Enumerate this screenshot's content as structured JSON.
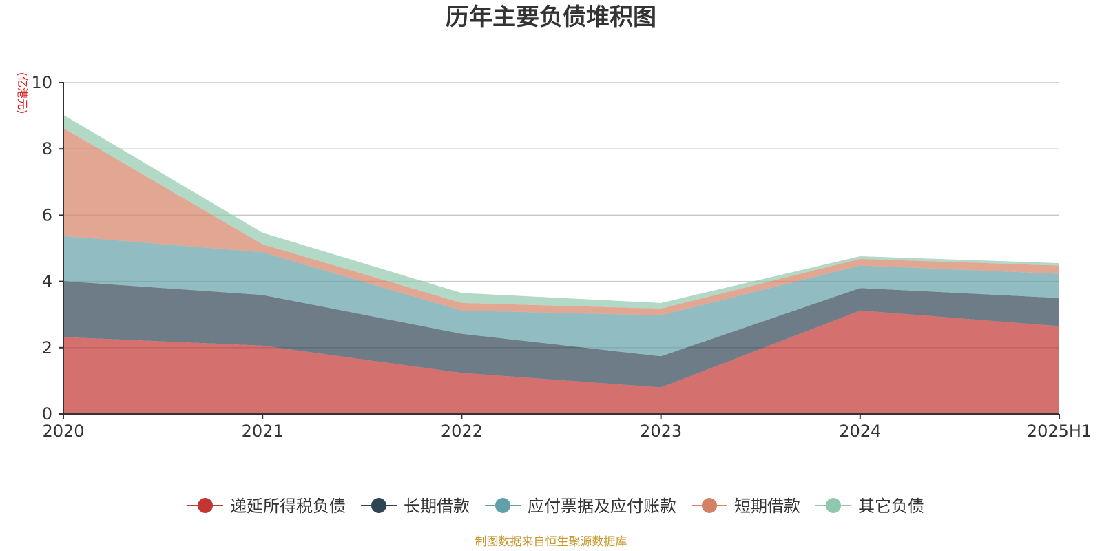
{
  "chart_data": {
    "type": "area",
    "stacked": true,
    "title": "历年主要负债堆积图",
    "unit_label": "(亿港元)",
    "categories": [
      "2020",
      "2021",
      "2022",
      "2023",
      "2024",
      "2025H1"
    ],
    "ylim": [
      0,
      10
    ],
    "yticks": [
      "0",
      "2",
      "4",
      "6",
      "8",
      "10"
    ],
    "grid": true,
    "legend_position": "bottom",
    "series": [
      {
        "name": "递延所得税负债",
        "color": "#c23531",
        "values": [
          2.32,
          2.06,
          1.24,
          0.8,
          3.12,
          2.65
        ]
      },
      {
        "name": "长期借款",
        "color": "#2f4554",
        "values": [
          1.69,
          1.53,
          1.18,
          0.94,
          0.68,
          0.85
        ]
      },
      {
        "name": "应付票据及应付账款",
        "color": "#61a0a8",
        "values": [
          1.36,
          1.29,
          0.7,
          1.24,
          0.68,
          0.73
        ]
      },
      {
        "name": "短期借款",
        "color": "#d48265",
        "values": [
          3.26,
          0.24,
          0.23,
          0.2,
          0.2,
          0.25
        ]
      },
      {
        "name": "其它负债",
        "color": "#91c7ae",
        "values": [
          0.4,
          0.35,
          0.3,
          0.17,
          0.08,
          0.07
        ]
      }
    ]
  },
  "source_note": "制图数据来自恒生聚源数据库"
}
